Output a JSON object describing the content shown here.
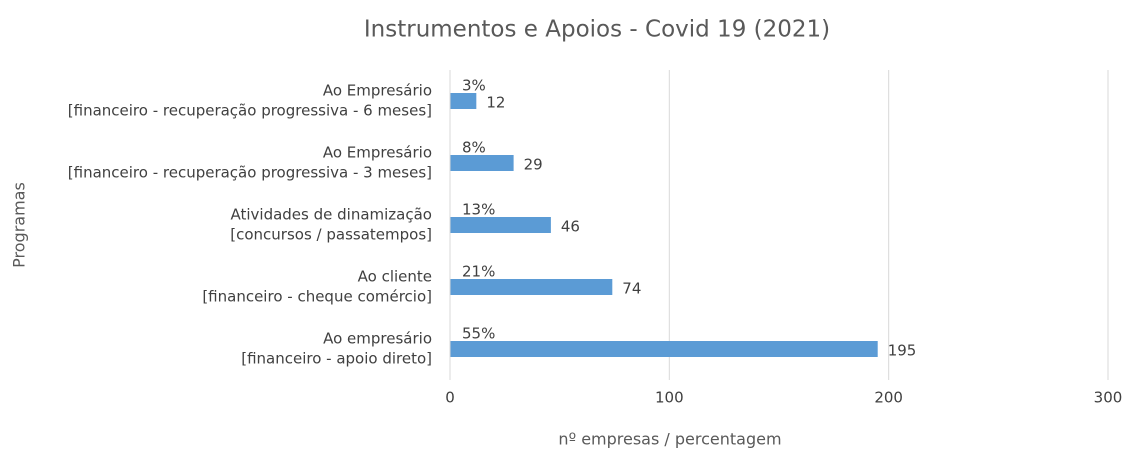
{
  "chart_data": {
    "type": "bar",
    "orientation": "horizontal",
    "title": "Instrumentos e Apoios - Covid 19 (2021)",
    "x_label": "nº empresas / percentagem",
    "y_label": "Programas",
    "categories": [
      [
        "Ao Empresário",
        "[financeiro - recuperação progressiva - 6 meses]"
      ],
      [
        "Ao Empresário",
        "[financeiro - recuperação progressiva - 3 meses]"
      ],
      [
        "Atividades de dinamização",
        "[concursos / passatempos]"
      ],
      [
        "Ao cliente",
        "[financeiro - cheque comércio]"
      ],
      [
        "Ao empresário",
        "[financeiro - apoio direto]"
      ]
    ],
    "values": [
      12,
      29,
      46,
      74,
      195
    ],
    "percent_labels": [
      "3%",
      "8%",
      "13%",
      "21%",
      "55%"
    ],
    "color": "#5b9bd5",
    "xlim": [
      0,
      300
    ],
    "xticks": [
      0,
      100,
      200,
      300
    ],
    "grid": true
  }
}
